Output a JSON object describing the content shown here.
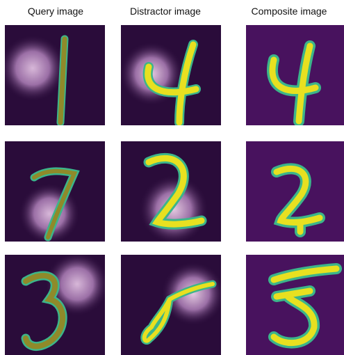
{
  "column_titles": [
    "Query image",
    "Distractor image",
    "Composite image"
  ],
  "rows": [
    {
      "query_digit": "1",
      "distractor_digit": "4",
      "composite_digit": "4"
    },
    {
      "query_digit": "7",
      "distractor_digit": "2",
      "composite_digit": "2"
    },
    {
      "query_digit": "3",
      "distractor_digit": "5",
      "composite_digit": "5"
    }
  ],
  "colors": {
    "background_dark": "#2a0c3a",
    "composite_background": "#48125e",
    "digit_olive": "#8f8a2a",
    "digit_yellow": "#e8e020",
    "digit_green": "#3cb58a",
    "blob_pink": "#d7b7d8"
  }
}
